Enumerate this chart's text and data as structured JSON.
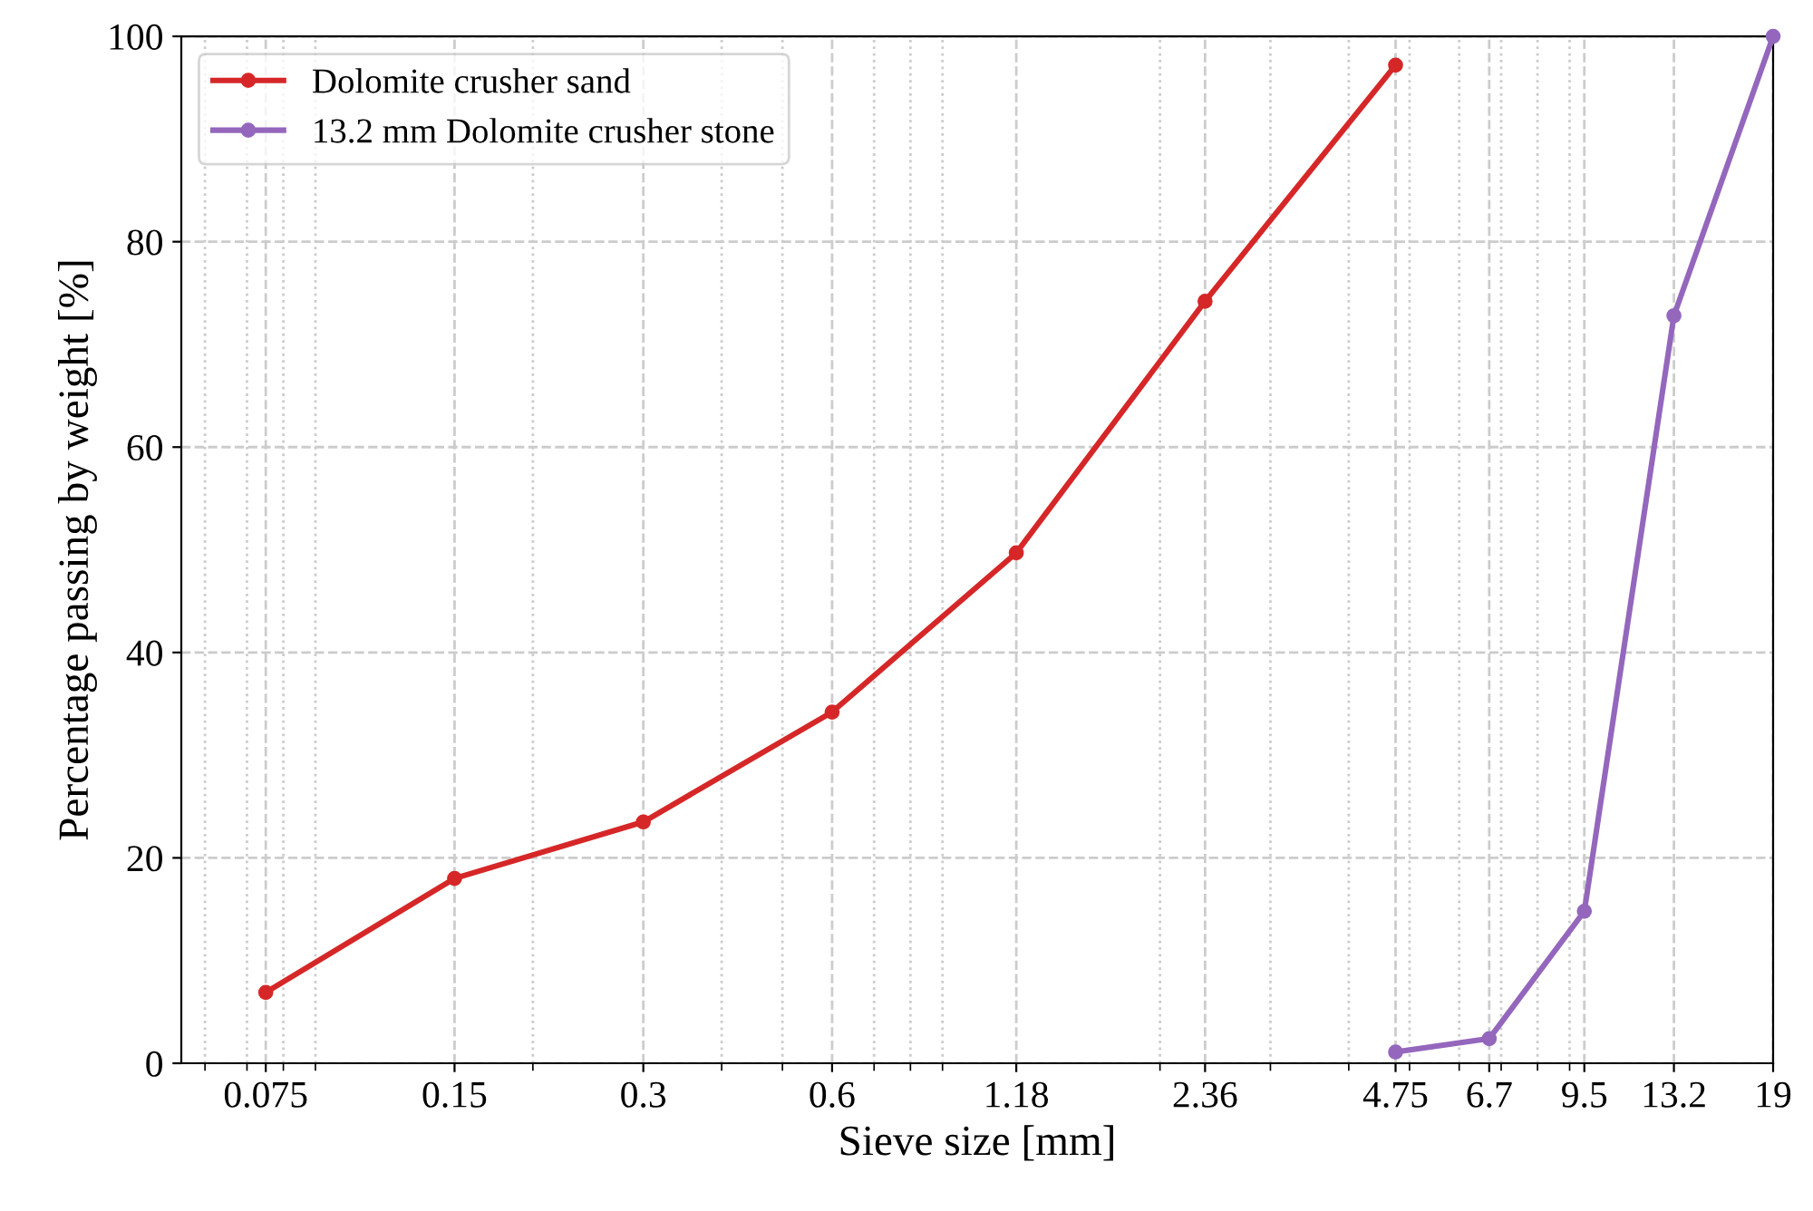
{
  "chart_data": {
    "type": "line",
    "xlabel": "Sieve size [mm]",
    "ylabel": "Percentage passing by weight [%]",
    "log": "x",
    "xlim": [
      0.055,
      19
    ],
    "ylim": [
      0,
      100
    ],
    "xticks": [
      0.075,
      0.15,
      0.3,
      0.6,
      1.18,
      2.36,
      4.75,
      6.7,
      9.5,
      13.2,
      19
    ],
    "yticks": [
      0,
      20,
      40,
      60,
      80,
      100
    ],
    "grid": true,
    "legend": "top left",
    "marker": "circle",
    "line_style": "solid",
    "series": [
      {
        "name": "Dolomite crusher sand",
        "color": "#d62728",
        "x": [
          0.075,
          0.15,
          0.3,
          0.6,
          1.18,
          2.36,
          4.75
        ],
        "values": [
          6.9,
          18,
          23.5,
          34.2,
          49.7,
          74.2,
          97.2
        ]
      },
      {
        "name": "13.2 mm Dolomite crusher stone",
        "color": "#9467bd",
        "x": [
          4.75,
          6.7,
          9.5,
          13.2,
          19
        ],
        "values": [
          1.1,
          2.4,
          14.8,
          72.8,
          100
        ]
      }
    ]
  }
}
